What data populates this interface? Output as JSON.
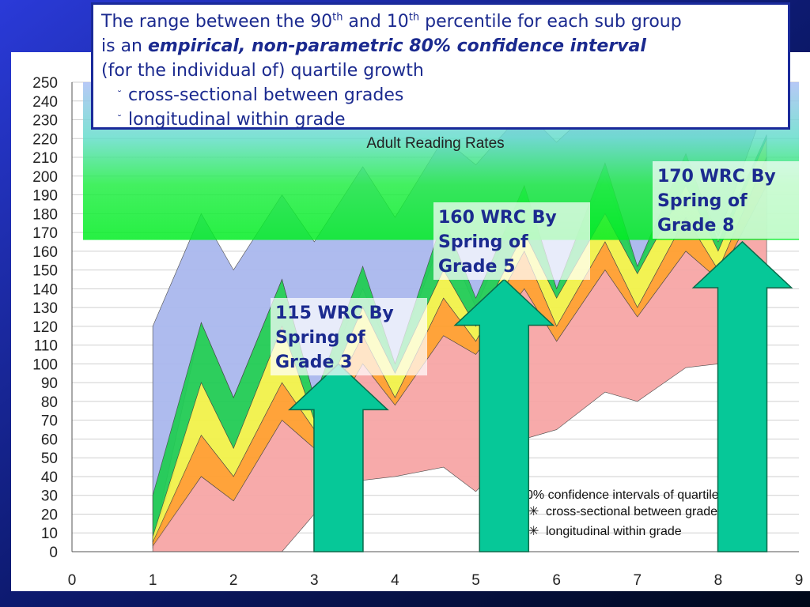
{
  "callout": {
    "line1_pre": "The range between the 90",
    "sup1": "th",
    "line1_mid": " and 10",
    "sup2": "th",
    "line1_post": " percentile for each sub group",
    "line2_pre": "is an ",
    "line2_em": "empirical, non-parametric 80% confidence interval",
    "line3": "(for the individual of) quartile growth",
    "bullets": [
      "cross-sectional between grades",
      "longitudinal within grade"
    ]
  },
  "targets": [
    {
      "label_line1": "115 WRC By",
      "label_line2": "Spring of",
      "label_line3": "Grade 3"
    },
    {
      "label_line1": "160 WRC By",
      "label_line2": "Spring of",
      "label_line3": "Grade 5"
    },
    {
      "label_line1": "170 WRC By",
      "label_line2": "Spring of",
      "label_line3": "Grade 8"
    }
  ],
  "chart_data": {
    "type": "area",
    "banner_label": "Adult Reading Rates",
    "banner_range": [
      166,
      250
    ],
    "xlim": [
      0,
      9
    ],
    "ylim": [
      0,
      250
    ],
    "x_ticks": [
      0,
      1,
      2,
      3,
      4,
      5,
      6,
      7,
      8,
      9
    ],
    "y_ticks": [
      0,
      10,
      20,
      30,
      40,
      50,
      60,
      70,
      80,
      90,
      100,
      110,
      120,
      130,
      140,
      150,
      160,
      170,
      180,
      190,
      200,
      210,
      220,
      230,
      240,
      250
    ],
    "legend_title": "0% confidence intervals of quartile",
    "legend_items": [
      "cross-sectional between grade",
      "longitudinal within grade"
    ],
    "x": [
      1,
      1.6,
      2,
      2.6,
      3,
      3.6,
      4,
      4.6,
      5,
      5.6,
      6,
      6.6,
      7,
      7.6,
      8,
      8.6
    ],
    "bands": [
      {
        "color": "#aab8ee",
        "lower": [
          5,
          122,
          82,
          145,
          82,
          140,
          100,
          170,
          130,
          190,
          140,
          200,
          150,
          210,
          168,
          240
        ],
        "upper": [
          120,
          180,
          150,
          190,
          165,
          205,
          178,
          220,
          206,
          235,
          218,
          242,
          225,
          247,
          230,
          250
        ]
      },
      {
        "color": "#22cc55",
        "lower": [
          4,
          90,
          55,
          120,
          70,
          130,
          95,
          150,
          120,
          170,
          135,
          180,
          148,
          195,
          160,
          220
        ],
        "upper": [
          30,
          122,
          82,
          145,
          82,
          152,
          100,
          178,
          135,
          195,
          140,
          207,
          152,
          212,
          165,
          222
        ]
      },
      {
        "color": "#f2f24a",
        "lower": [
          3,
          62,
          40,
          90,
          65,
          115,
          82,
          135,
          112,
          160,
          120,
          165,
          130,
          178,
          150,
          210
        ],
        "upper": [
          8,
          90,
          55,
          120,
          70,
          130,
          95,
          150,
          120,
          170,
          135,
          180,
          148,
          195,
          160,
          220
        ]
      },
      {
        "color": "#ff9f30",
        "lower": [
          2,
          40,
          27,
          70,
          55,
          100,
          78,
          115,
          105,
          140,
          112,
          150,
          125,
          160,
          145,
          195
        ],
        "upper": [
          5,
          62,
          40,
          90,
          65,
          115,
          82,
          135,
          112,
          160,
          120,
          165,
          130,
          178,
          150,
          210
        ]
      },
      {
        "color": "#f7a6a6",
        "lower": [
          0,
          0,
          0,
          0,
          20,
          38,
          40,
          45,
          32,
          60,
          65,
          85,
          80,
          98,
          100,
          120
        ],
        "upper": [
          3,
          40,
          27,
          70,
          55,
          100,
          78,
          115,
          105,
          140,
          112,
          150,
          125,
          160,
          145,
          195
        ]
      }
    ],
    "arrows": [
      {
        "x_center": 3.3,
        "tip_y": 100
      },
      {
        "x_center": 5.35,
        "tip_y": 145
      },
      {
        "x_center": 8.3,
        "tip_y": 165
      }
    ],
    "grid": true
  },
  "colors": {
    "arrow": "#06c898",
    "arrow_stroke": "#0a6a4a",
    "text_blue": "#1b2a8f"
  }
}
